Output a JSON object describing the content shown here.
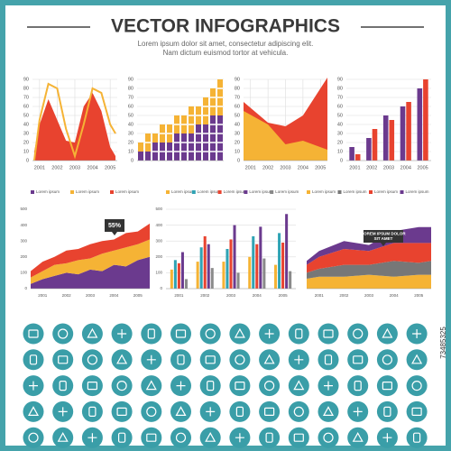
{
  "header": {
    "title": "VECTOR INFOGRAPHICS",
    "subtitle": [
      "Lorem ipsum dolor sit amet, consectetur adipiscing elit.",
      "Nam dictum euismod tortor at vehicula."
    ],
    "stock_id": "73485325"
  },
  "chart_data": [
    {
      "type": "area",
      "x": [
        2000.7,
        2001,
        2001.5,
        2002,
        2002.5,
        2003,
        2003.5,
        2004,
        2004.5,
        2005,
        2005.3
      ],
      "xlim": [
        2000.6,
        2005.4
      ],
      "xticks": [
        2001,
        2002,
        2003,
        2004,
        2005
      ],
      "ylim": [
        0,
        90
      ],
      "yticks": [
        0,
        10,
        20,
        30,
        40,
        50,
        60,
        70,
        80,
        90
      ],
      "grid": true,
      "series": [
        {
          "color": "#e8432f",
          "style": "area",
          "values": [
            10,
            40,
            68,
            45,
            22,
            20,
            60,
            75,
            55,
            15,
            5
          ]
        },
        {
          "color": "#f5b335",
          "style": "line",
          "values": [
            0,
            45,
            85,
            80,
            35,
            5,
            40,
            80,
            75,
            40,
            30
          ]
        }
      ]
    },
    {
      "type": "stacked_bar",
      "categories": [
        null,
        null,
        null,
        null,
        null,
        null,
        null,
        null,
        null,
        null,
        null,
        null
      ],
      "ylim": [
        0,
        90
      ],
      "yticks": [
        0,
        10,
        20,
        30,
        40,
        50,
        60,
        70,
        80,
        90
      ],
      "grid": true,
      "series": [
        {
          "color": "#6b3a8e",
          "values": [
            10,
            10,
            20,
            20,
            20,
            30,
            30,
            30,
            40,
            40,
            50,
            50
          ]
        },
        {
          "color": "#f5b335",
          "values": [
            10,
            20,
            10,
            20,
            20,
            20,
            20,
            30,
            20,
            30,
            30,
            40
          ]
        }
      ]
    },
    {
      "type": "area",
      "x": [
        2000.6,
        2002,
        2003,
        2004,
        2005.4
      ],
      "xlim": [
        2000.6,
        2005.4
      ],
      "xticks": [
        2001,
        2002,
        2003,
        2004,
        2005
      ],
      "ylim": [
        0,
        90
      ],
      "yticks": [
        0,
        10,
        20,
        30,
        40,
        50,
        60,
        70,
        80,
        90
      ],
      "grid": true,
      "series": [
        {
          "color": "#e8432f",
          "style": "area",
          "values": [
            65,
            42,
            38,
            50,
            92
          ]
        },
        {
          "color": "#f5b335",
          "style": "area",
          "values": [
            55,
            40,
            18,
            22,
            12
          ]
        }
      ]
    },
    {
      "type": "bar",
      "categories": [
        "2001",
        "2002",
        "2003",
        "2004",
        "2005"
      ],
      "ylim": [
        0,
        90
      ],
      "yticks": [
        0,
        10,
        20,
        30,
        40,
        50,
        60,
        70,
        80,
        90
      ],
      "grid": true,
      "series": [
        {
          "color": "#6b3a8e",
          "values": [
            15,
            25,
            50,
            60,
            80
          ]
        },
        {
          "color": "#e8432f",
          "values": [
            7,
            35,
            45,
            65,
            90
          ]
        }
      ]
    },
    {
      "type": "stacked_area",
      "x": [
        2000.5,
        2001,
        2001.5,
        2002,
        2002.5,
        2003,
        2003.5,
        2004,
        2004.5,
        2005,
        2005.5
      ],
      "xlim": [
        2000.5,
        2005.5
      ],
      "xticks": [
        2001,
        2002,
        2003,
        2004,
        2005
      ],
      "ylim": [
        0,
        500
      ],
      "yticks": [
        0,
        100,
        200,
        300,
        400,
        500
      ],
      "grid": false,
      "annotation": "55%",
      "series": [
        {
          "name": "Lorem ipsum",
          "color": "#6b3a8e",
          "values": [
            30,
            60,
            80,
            100,
            90,
            120,
            110,
            150,
            140,
            180,
            200
          ]
        },
        {
          "name": "Lorem ipsum",
          "color": "#f5b335",
          "values": [
            40,
            50,
            70,
            60,
            90,
            70,
            110,
            90,
            120,
            100,
            110
          ]
        },
        {
          "name": "Lorem ipsum",
          "color": "#e8432f",
          "values": [
            40,
            60,
            50,
            80,
            70,
            90,
            80,
            70,
            90,
            80,
            100
          ]
        }
      ]
    },
    {
      "type": "bar",
      "categories": [
        "2001",
        "2002",
        "2003",
        "2004",
        "2005"
      ],
      "ylim": [
        0,
        500
      ],
      "yticks": [
        0,
        100,
        200,
        300,
        400,
        500
      ],
      "grid": true,
      "series": [
        {
          "name": "Lorem ipsum",
          "color": "#f5b335",
          "values": [
            120,
            170,
            170,
            200,
            150
          ]
        },
        {
          "name": "Lorem ipsum",
          "color": "#2fa3b4",
          "values": [
            180,
            260,
            250,
            330,
            350
          ]
        },
        {
          "name": "Lorem ipsum",
          "color": "#e8432f",
          "values": [
            160,
            330,
            310,
            280,
            290
          ]
        },
        {
          "name": "Lorem ipsum",
          "color": "#6b3a8e",
          "values": [
            230,
            280,
            400,
            390,
            470
          ]
        },
        {
          "name": "Lorem ipsum",
          "color": "#8a8a8a",
          "values": [
            60,
            130,
            100,
            190,
            110
          ]
        }
      ]
    },
    {
      "type": "stacked_area",
      "x": [
        2000.5,
        2001,
        2002,
        2003,
        2004,
        2005,
        2005.5
      ],
      "xlim": [
        2000.5,
        2005.5
      ],
      "xticks": [
        2001,
        2002,
        2003,
        2004,
        2005
      ],
      "ylim": [
        0,
        400
      ],
      "grid": false,
      "annotation": "LOREM IPSUM DOLOR SIT AMET",
      "series": [
        {
          "name": "Lorem ipsum",
          "color": "#f5b335",
          "values": [
            50,
            60,
            60,
            70,
            60,
            70,
            70
          ]
        },
        {
          "name": "Lorem ipsum",
          "color": "#777777",
          "values": [
            30,
            40,
            60,
            50,
            80,
            60,
            70
          ]
        },
        {
          "name": "Lorem ipsum",
          "color": "#e8432f",
          "values": [
            40,
            60,
            80,
            70,
            90,
            100,
            90
          ]
        },
        {
          "name": "Lorem ipsum",
          "color": "#6b3a8e",
          "values": [
            20,
            30,
            40,
            30,
            60,
            80,
            80
          ]
        }
      ]
    }
  ]
}
